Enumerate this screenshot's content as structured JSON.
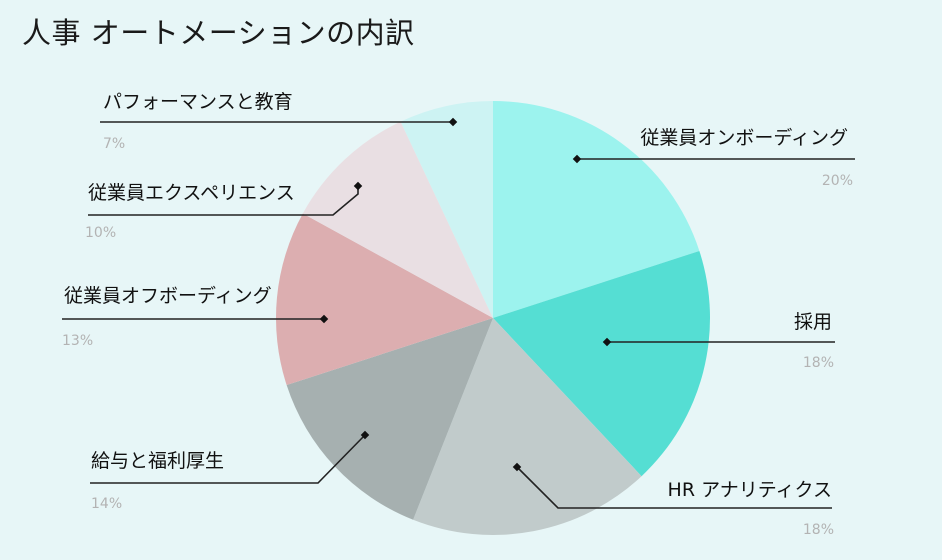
{
  "title": "人事 オートメーションの内訳",
  "chart_data": {
    "type": "pie",
    "title": "人事 オートメーションの内訳",
    "slices": [
      {
        "label": "従業員オンボーディング",
        "value": 20,
        "value_label": "20%",
        "color": "#9cf3ee"
      },
      {
        "label": "採用",
        "value": 18,
        "value_label": "18%",
        "color": "#55ded3"
      },
      {
        "label": "HR アナリティクス",
        "value": 18,
        "value_label": "18%",
        "color": "#c1cbcb"
      },
      {
        "label": "給与と福利厚生",
        "value": 14,
        "value_label": "14%",
        "color": "#a6b0b0"
      },
      {
        "label": "従業員オフボーディング",
        "value": 13,
        "value_label": "13%",
        "color": "#dcaeb0"
      },
      {
        "label": "従業員エクスペリエンス",
        "value": 10,
        "value_label": "10%",
        "color": "#e9dfe3"
      },
      {
        "label": "パフォーマンスと教育",
        "value": 7,
        "value_label": "7%",
        "color": "#cdf3f3"
      }
    ]
  }
}
